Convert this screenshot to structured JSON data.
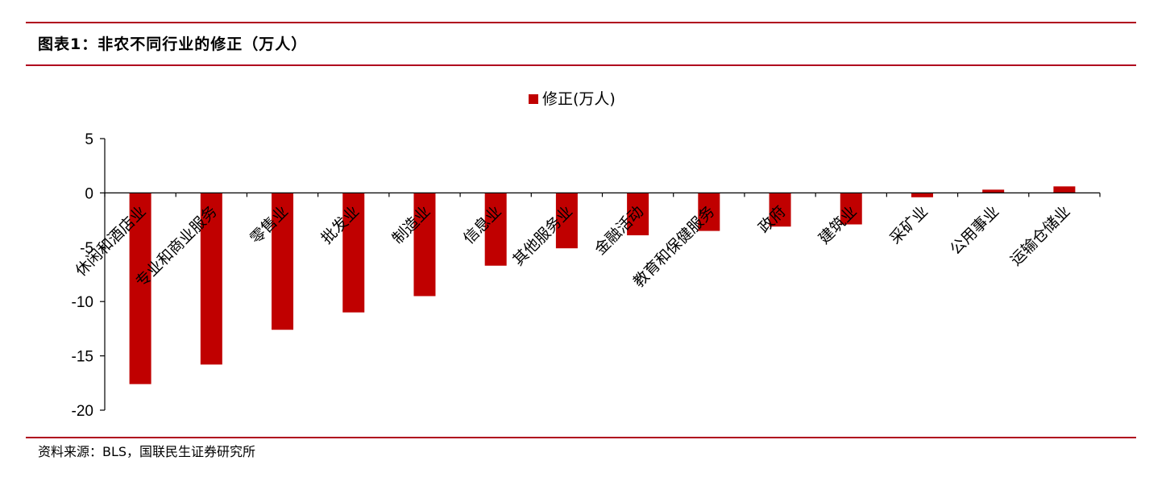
{
  "figure_title": "图表1：非农不同行业的修正（万人）",
  "source_note": "资料来源：BLS，国联民生证券研究所",
  "chart_data": {
    "type": "bar",
    "title": "",
    "xlabel": "",
    "ylabel": "",
    "legend": {
      "position": "top-center"
    },
    "ylim": [
      -20,
      5
    ],
    "yticks": [
      5,
      0,
      -5,
      -10,
      -15,
      -20
    ],
    "ytick_labels": [
      "5",
      "0",
      "-5",
      "-10",
      "-15",
      "-20"
    ],
    "grid": false,
    "categories": [
      "休闲和酒店业",
      "专业和商业服务",
      "零售业",
      "批发业",
      "制造业",
      "信息业",
      "其他服务业",
      "金融活动",
      "教育和保健服务",
      "政府",
      "建筑业",
      "采矿业",
      "公用事业",
      "运输仓储业"
    ],
    "series": [
      {
        "name": "修正(万人)",
        "color": "#c00000",
        "values": [
          -17.6,
          -15.8,
          -12.6,
          -11.0,
          -9.5,
          -6.7,
          -5.1,
          -3.9,
          -3.5,
          -3.1,
          -2.9,
          -0.4,
          0.3,
          0.6
        ]
      }
    ]
  }
}
